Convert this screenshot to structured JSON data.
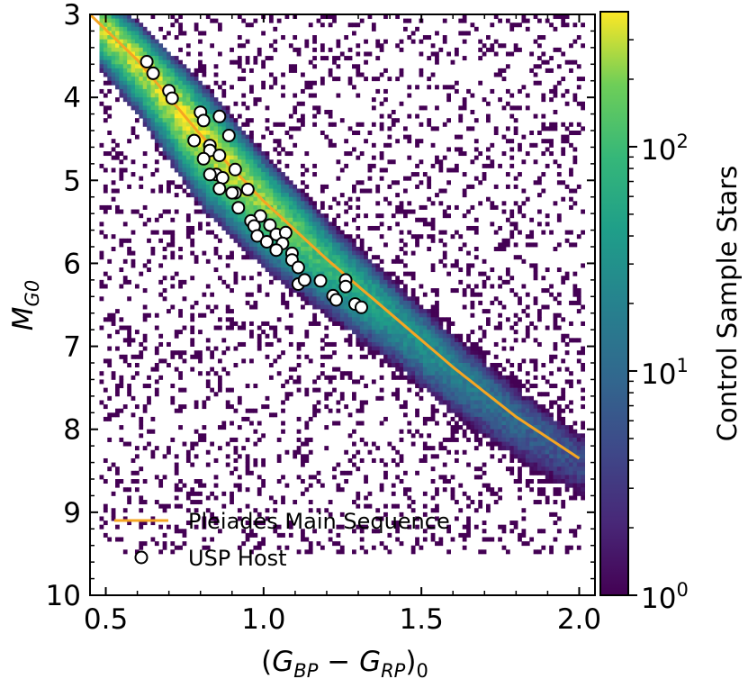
{
  "chart_data": {
    "type": "heatmap",
    "title": "",
    "xlabel": "(G_BP − G_RP)_0",
    "ylabel": "M_G0",
    "xlim": [
      0.45,
      2.05
    ],
    "ylim": [
      3,
      10
    ],
    "y_inverted": true,
    "xticks": [
      0.5,
      1.0,
      1.5,
      2.0
    ],
    "xtick_labels": [
      "0.5",
      "1.0",
      "1.5",
      "2.0"
    ],
    "yticks": [
      3,
      4,
      5,
      6,
      7,
      8,
      9,
      10
    ],
    "ytick_labels": [
      "3",
      "4",
      "5",
      "6",
      "7",
      "8",
      "9",
      "10"
    ],
    "grid": false,
    "legend_position": "bottom-left",
    "colorbar": {
      "label": "Control Sample Stars",
      "scale": "log",
      "min": 1,
      "max": 400,
      "colormap": "viridis",
      "ticks": [
        1,
        10,
        100
      ],
      "tick_labels": [
        "10",
        "10",
        "10"
      ],
      "tick_exponents": [
        "0",
        "1",
        "2"
      ]
    },
    "heatmap_ridge": {
      "description": "2D histogram of control sample stars, dense band along the main sequence",
      "x": [
        0.45,
        0.6,
        0.8,
        1.0,
        1.2,
        1.4,
        1.6,
        1.8,
        2.0
      ],
      "y_center": [
        3.0,
        3.55,
        4.45,
        5.25,
        5.95,
        6.6,
        7.25,
        7.85,
        8.35
      ],
      "half_width": [
        0.35,
        0.45,
        0.6,
        0.55,
        0.5,
        0.48,
        0.5,
        0.5,
        0.5
      ],
      "peak_count": [
        300,
        320,
        350,
        220,
        90,
        40,
        20,
        10,
        5
      ]
    },
    "series": [
      {
        "name": "Pleiades Main Sequence",
        "type": "line",
        "color": "#f5a623",
        "x": [
          0.45,
          0.6,
          0.8,
          1.0,
          1.2,
          1.4,
          1.6,
          1.8,
          2.0
        ],
        "y": [
          3.0,
          3.55,
          4.45,
          5.25,
          5.95,
          6.6,
          7.25,
          7.85,
          8.35
        ]
      },
      {
        "name": "USP Host",
        "type": "scatter",
        "color": "#ffffff",
        "edgecolor": "#000000",
        "x": [
          0.63,
          0.65,
          0.7,
          0.71,
          0.8,
          0.81,
          0.78,
          0.86,
          0.89,
          0.83,
          0.83,
          0.81,
          0.86,
          0.85,
          0.83,
          0.87,
          0.91,
          0.86,
          0.91,
          0.95,
          0.92,
          0.9,
          0.99,
          0.96,
          0.97,
          1.02,
          0.98,
          1.01,
          1.04,
          1.07,
          1.06,
          1.04,
          1.09,
          1.09,
          1.11,
          1.11,
          1.18,
          1.13,
          1.26,
          1.22,
          1.23,
          1.26,
          1.29,
          1.31
        ],
        "y": [
          3.57,
          3.71,
          3.92,
          4.01,
          4.18,
          4.28,
          4.52,
          4.23,
          4.46,
          4.58,
          4.64,
          4.74,
          4.7,
          4.93,
          4.93,
          4.97,
          4.87,
          5.1,
          5.15,
          5.11,
          5.33,
          5.15,
          5.43,
          5.49,
          5.55,
          5.54,
          5.67,
          5.74,
          5.65,
          5.63,
          5.76,
          5.84,
          5.88,
          5.96,
          6.05,
          6.25,
          6.21,
          6.2,
          6.2,
          6.39,
          6.44,
          6.28,
          6.49,
          6.53
        ]
      }
    ]
  }
}
